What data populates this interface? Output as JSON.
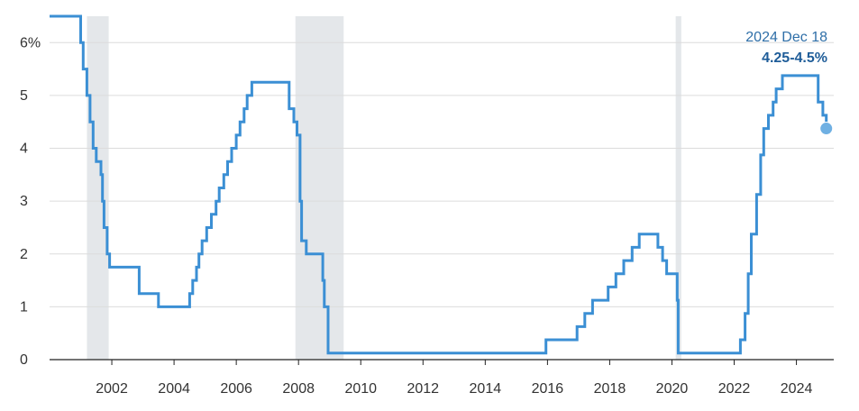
{
  "chart_data": {
    "type": "line",
    "title": "",
    "xlabel": "",
    "ylabel": "",
    "xlim": [
      2000.0,
      2025.2
    ],
    "ylim": [
      0,
      6.5
    ],
    "grid": true,
    "y_ticks": [
      {
        "value": 6,
        "label": "6%"
      },
      {
        "value": 5,
        "label": "5"
      },
      {
        "value": 4,
        "label": "4"
      },
      {
        "value": 3,
        "label": "3"
      },
      {
        "value": 2,
        "label": "2"
      },
      {
        "value": 1,
        "label": "1"
      },
      {
        "value": 0,
        "label": "0"
      }
    ],
    "x_ticks": [
      {
        "value": 2002,
        "label": "2002"
      },
      {
        "value": 2004,
        "label": "2004"
      },
      {
        "value": 2006,
        "label": "2006"
      },
      {
        "value": 2008,
        "label": "2008"
      },
      {
        "value": 2010,
        "label": "2010"
      },
      {
        "value": 2012,
        "label": "2012"
      },
      {
        "value": 2014,
        "label": "2014"
      },
      {
        "value": 2016,
        "label": "2016"
      },
      {
        "value": 2018,
        "label": "2018"
      },
      {
        "value": 2020,
        "label": "2020"
      },
      {
        "value": 2022,
        "label": "2022"
      },
      {
        "value": 2024,
        "label": "2024"
      }
    ],
    "recessions": [
      {
        "start": 2001.2,
        "end": 2001.9
      },
      {
        "start": 2007.9,
        "end": 2009.45
      },
      {
        "start": 2020.12,
        "end": 2020.3
      }
    ],
    "series": [
      {
        "color": "#3b8fd4",
        "points": [
          [
            2000.0,
            6.5
          ],
          [
            2000.6,
            6.5
          ],
          [
            2000.6,
            6.5
          ],
          [
            2001.0,
            6.5
          ],
          [
            2001.0,
            6.0
          ],
          [
            2001.08,
            6.0
          ],
          [
            2001.08,
            5.5
          ],
          [
            2001.2,
            5.5
          ],
          [
            2001.2,
            5.0
          ],
          [
            2001.3,
            5.0
          ],
          [
            2001.3,
            4.5
          ],
          [
            2001.4,
            4.5
          ],
          [
            2001.4,
            4.0
          ],
          [
            2001.5,
            4.0
          ],
          [
            2001.5,
            3.75
          ],
          [
            2001.65,
            3.75
          ],
          [
            2001.65,
            3.5
          ],
          [
            2001.7,
            3.5
          ],
          [
            2001.7,
            3.0
          ],
          [
            2001.75,
            3.0
          ],
          [
            2001.75,
            2.5
          ],
          [
            2001.85,
            2.5
          ],
          [
            2001.85,
            2.0
          ],
          [
            2001.93,
            2.0
          ],
          [
            2001.93,
            1.75
          ],
          [
            2002.88,
            1.75
          ],
          [
            2002.88,
            1.25
          ],
          [
            2003.5,
            1.25
          ],
          [
            2003.5,
            1.0
          ],
          [
            2004.5,
            1.0
          ],
          [
            2004.5,
            1.25
          ],
          [
            2004.6,
            1.25
          ],
          [
            2004.6,
            1.5
          ],
          [
            2004.72,
            1.5
          ],
          [
            2004.72,
            1.75
          ],
          [
            2004.8,
            1.75
          ],
          [
            2004.8,
            2.0
          ],
          [
            2004.9,
            2.0
          ],
          [
            2004.9,
            2.25
          ],
          [
            2005.05,
            2.25
          ],
          [
            2005.05,
            2.5
          ],
          [
            2005.2,
            2.5
          ],
          [
            2005.2,
            2.75
          ],
          [
            2005.35,
            2.75
          ],
          [
            2005.35,
            3.0
          ],
          [
            2005.45,
            3.0
          ],
          [
            2005.45,
            3.25
          ],
          [
            2005.6,
            3.25
          ],
          [
            2005.6,
            3.5
          ],
          [
            2005.72,
            3.5
          ],
          [
            2005.72,
            3.75
          ],
          [
            2005.85,
            3.75
          ],
          [
            2005.85,
            4.0
          ],
          [
            2006.0,
            4.0
          ],
          [
            2006.0,
            4.25
          ],
          [
            2006.12,
            4.25
          ],
          [
            2006.12,
            4.5
          ],
          [
            2006.25,
            4.5
          ],
          [
            2006.25,
            4.75
          ],
          [
            2006.35,
            4.75
          ],
          [
            2006.35,
            5.0
          ],
          [
            2006.5,
            5.0
          ],
          [
            2006.5,
            5.25
          ],
          [
            2007.7,
            5.25
          ],
          [
            2007.7,
            4.75
          ],
          [
            2007.85,
            4.75
          ],
          [
            2007.85,
            4.5
          ],
          [
            2007.95,
            4.5
          ],
          [
            2007.95,
            4.25
          ],
          [
            2008.05,
            4.25
          ],
          [
            2008.05,
            3.0
          ],
          [
            2008.1,
            3.0
          ],
          [
            2008.1,
            2.25
          ],
          [
            2008.25,
            2.25
          ],
          [
            2008.25,
            2.0
          ],
          [
            2008.78,
            2.0
          ],
          [
            2008.78,
            1.5
          ],
          [
            2008.83,
            1.5
          ],
          [
            2008.83,
            1.0
          ],
          [
            2008.95,
            1.0
          ],
          [
            2008.95,
            0.125
          ],
          [
            2015.95,
            0.125
          ],
          [
            2015.95,
            0.375
          ],
          [
            2016.95,
            0.375
          ],
          [
            2016.95,
            0.625
          ],
          [
            2017.2,
            0.625
          ],
          [
            2017.2,
            0.875
          ],
          [
            2017.45,
            0.875
          ],
          [
            2017.45,
            1.125
          ],
          [
            2017.95,
            1.125
          ],
          [
            2017.95,
            1.375
          ],
          [
            2018.2,
            1.375
          ],
          [
            2018.2,
            1.625
          ],
          [
            2018.45,
            1.625
          ],
          [
            2018.45,
            1.875
          ],
          [
            2018.72,
            1.875
          ],
          [
            2018.72,
            2.125
          ],
          [
            2018.95,
            2.125
          ],
          [
            2018.95,
            2.375
          ],
          [
            2019.55,
            2.375
          ],
          [
            2019.55,
            2.125
          ],
          [
            2019.7,
            2.125
          ],
          [
            2019.7,
            1.875
          ],
          [
            2019.83,
            1.875
          ],
          [
            2019.83,
            1.625
          ],
          [
            2020.17,
            1.625
          ],
          [
            2020.17,
            1.125
          ],
          [
            2020.2,
            1.125
          ],
          [
            2020.2,
            0.125
          ],
          [
            2022.2,
            0.125
          ],
          [
            2022.2,
            0.375
          ],
          [
            2022.35,
            0.375
          ],
          [
            2022.35,
            0.875
          ],
          [
            2022.45,
            0.875
          ],
          [
            2022.45,
            1.625
          ],
          [
            2022.55,
            1.625
          ],
          [
            2022.55,
            2.375
          ],
          [
            2022.72,
            2.375
          ],
          [
            2022.72,
            3.125
          ],
          [
            2022.85,
            3.125
          ],
          [
            2022.85,
            3.875
          ],
          [
            2022.95,
            3.875
          ],
          [
            2022.95,
            4.375
          ],
          [
            2023.1,
            4.375
          ],
          [
            2023.1,
            4.625
          ],
          [
            2023.25,
            4.625
          ],
          [
            2023.25,
            4.875
          ],
          [
            2023.35,
            4.875
          ],
          [
            2023.35,
            5.125
          ],
          [
            2023.55,
            5.125
          ],
          [
            2023.55,
            5.375
          ],
          [
            2024.7,
            5.375
          ],
          [
            2024.7,
            4.875
          ],
          [
            2024.85,
            4.875
          ],
          [
            2024.85,
            4.625
          ],
          [
            2024.96,
            4.625
          ],
          [
            2024.96,
            4.375
          ]
        ]
      }
    ],
    "endpoint": {
      "x": 2024.96,
      "y": 4.375
    },
    "annotation": {
      "date": "2024 Dec 18",
      "value": "4.25-4.5%"
    }
  }
}
